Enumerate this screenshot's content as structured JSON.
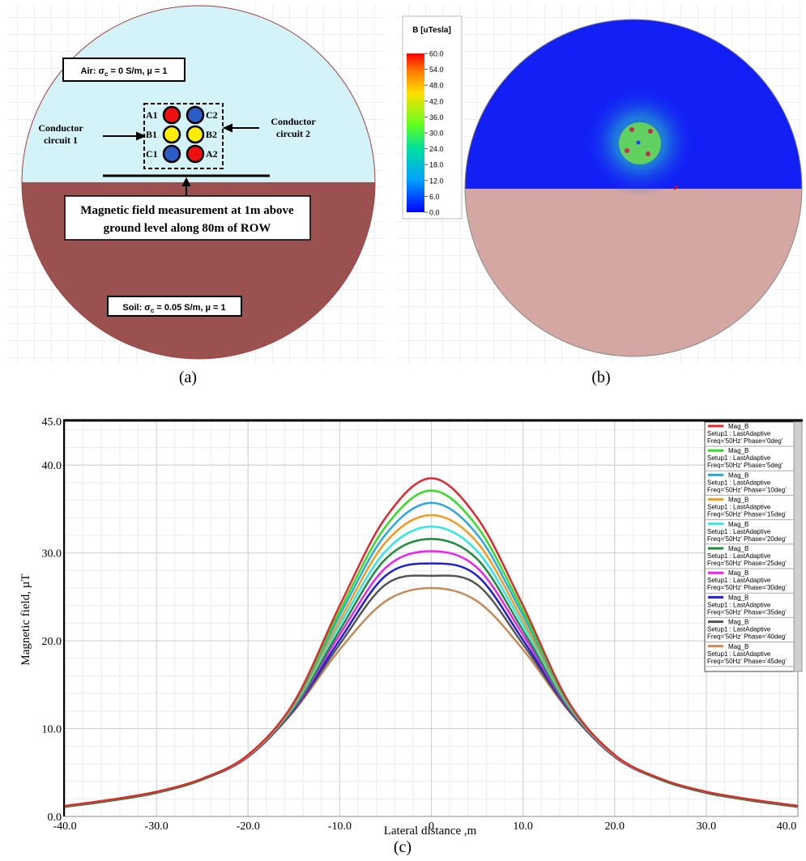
{
  "panel_a": {
    "caption": "(a)",
    "air_label": {
      "prefix": "Air: σ",
      "sub": "c",
      "suffix": " = 0 S/m, µ = 1"
    },
    "soil_label": {
      "prefix": "Soil: σ",
      "sub": "c",
      "suffix": " = 0.05 S/m, µ = 1"
    },
    "circuit_1": [
      "Conductor",
      "circuit 1"
    ],
    "circuit_2": [
      "Conductor",
      "circuit 2"
    ],
    "conductors": [
      "A1",
      "B1",
      "C1",
      "C2",
      "B2",
      "A2"
    ],
    "measurement": [
      "Magnetic field measurement at 1m above",
      "ground level along 80m of ROW"
    ]
  },
  "panel_b": {
    "caption": "(b)",
    "colorbar_title": "B [uTesla]",
    "clim": [
      0,
      60
    ],
    "ticks": [
      {
        "value": 60,
        "label": "60.0"
      },
      {
        "value": 54,
        "label": "54.0"
      },
      {
        "value": 48,
        "label": "48.0"
      },
      {
        "value": 42,
        "label": "42.0"
      },
      {
        "value": 36,
        "label": "36.0"
      },
      {
        "value": 30,
        "label": "30.0"
      },
      {
        "value": 24,
        "label": "24.0"
      },
      {
        "value": 18,
        "label": "18.0"
      },
      {
        "value": 12,
        "label": "12.0"
      },
      {
        "value": 6,
        "label": "6.0"
      },
      {
        "value": 0,
        "label": "0.0"
      }
    ]
  },
  "chart_data": {
    "type": "line",
    "caption": "(c)",
    "x_label": "Lateral distance ,m",
    "y_label": "Magnetic field, µT",
    "x": [
      -40,
      -35,
      -30,
      -25,
      -20,
      -15,
      -10,
      -5,
      0,
      5,
      10,
      15,
      20,
      25,
      30,
      35,
      40
    ],
    "xlim": [
      -40,
      40
    ],
    "ylim": [
      0,
      45
    ],
    "grid": true,
    "xticks": [
      {
        "value": -40,
        "label": "-40.0"
      },
      {
        "value": -30,
        "label": "-30.0"
      },
      {
        "value": -20,
        "label": "-20.0"
      },
      {
        "value": -10,
        "label": "-10.0"
      },
      {
        "value": 0,
        "label": "0"
      },
      {
        "value": 10,
        "label": "10.0"
      },
      {
        "value": 20,
        "label": "20.0"
      },
      {
        "value": 30,
        "label": "30.0"
      },
      {
        "value": 40,
        "label": "40.0"
      }
    ],
    "yticks": [
      {
        "value": 0,
        "label": "0.0"
      },
      {
        "value": 10,
        "label": "10.0"
      },
      {
        "value": 20,
        "label": "20.0"
      },
      {
        "value": 30,
        "label": "30.0"
      },
      {
        "value": 40,
        "label": "40.0"
      },
      {
        "value": 45,
        "label": "45.0"
      }
    ],
    "series": [
      {
        "name": "Mag_B",
        "setup": "Setup1 : LastAdaptive",
        "variation": "Freq='50Hz' Phase='0deg'",
        "color": "#e0282e",
        "values": [
          1.2,
          1.9,
          2.8,
          4.3,
          7,
          13,
          24,
          34,
          38.5,
          34,
          24,
          13,
          7,
          4.3,
          2.8,
          1.9,
          1.2
        ]
      },
      {
        "name": "Mag_B",
        "setup": "Setup1 : LastAdaptive",
        "variation": "Freq='50Hz' Phase='5deg'",
        "color": "#33dd22",
        "values": [
          1.2,
          1.9,
          2.8,
          4.3,
          7,
          12.9,
          23.4,
          33,
          37.1,
          33,
          23.4,
          12.9,
          7,
          4.3,
          2.8,
          1.9,
          1.2
        ]
      },
      {
        "name": "Mag_B",
        "setup": "Setup1 : LastAdaptive",
        "variation": "Freq='50Hz' Phase='10deg'",
        "color": "#29a8e0",
        "values": [
          1.2,
          1.9,
          2.8,
          4.3,
          7,
          12.8,
          22.9,
          32.1,
          35.7,
          32.1,
          22.9,
          12.8,
          7,
          4.3,
          2.8,
          1.9,
          1.2
        ]
      },
      {
        "name": "Mag_B",
        "setup": "Setup1 : LastAdaptive",
        "variation": "Freq='50Hz' Phase='15deg'",
        "color": "#f39a1e",
        "values": [
          1.2,
          1.9,
          2.8,
          4.3,
          6.9,
          12.7,
          22.3,
          31.2,
          34.3,
          31.2,
          22.3,
          12.7,
          6.9,
          4.3,
          2.8,
          1.9,
          1.2
        ]
      },
      {
        "name": "Mag_B",
        "setup": "Setup1 : LastAdaptive",
        "variation": "Freq='50Hz' Phase='20deg'",
        "color": "#33e6e6",
        "values": [
          1.2,
          1.9,
          2.8,
          4.3,
          6.9,
          12.6,
          21.8,
          30.2,
          33,
          30.2,
          21.8,
          12.6,
          6.9,
          4.3,
          2.8,
          1.9,
          1.2
        ]
      },
      {
        "name": "Mag_B",
        "setup": "Setup1 : LastAdaptive",
        "variation": "Freq='50Hz' Phase='25deg'",
        "color": "#1a8c3a",
        "values": [
          1.1,
          1.8,
          2.7,
          4.2,
          6.9,
          12.4,
          21.2,
          29.3,
          31.6,
          29.3,
          21.2,
          12.4,
          6.9,
          4.2,
          2.7,
          1.8,
          1.1
        ]
      },
      {
        "name": "Mag_B",
        "setup": "Setup1 : LastAdaptive",
        "variation": "Freq='50Hz' Phase='30deg'",
        "color": "#ee22ee",
        "values": [
          1.1,
          1.8,
          2.7,
          4.2,
          6.9,
          12.3,
          20.7,
          28.3,
          30.2,
          28.3,
          20.7,
          12.3,
          6.9,
          4.2,
          2.7,
          1.8,
          1.1
        ]
      },
      {
        "name": "Mag_B",
        "setup": "Setup1 : LastAdaptive",
        "variation": "Freq='50Hz' Phase='35deg'",
        "color": "#1f1fd6",
        "values": [
          1.1,
          1.8,
          2.7,
          4.2,
          6.8,
          12.2,
          20.1,
          27.4,
          28.8,
          27.4,
          20.1,
          12.2,
          6.8,
          4.2,
          2.7,
          1.8,
          1.1
        ]
      },
      {
        "name": "Mag_B",
        "setup": "Setup1 : LastAdaptive",
        "variation": "Freq='50Hz' Phase='40deg'",
        "color": "#555555",
        "values": [
          1.1,
          1.8,
          2.7,
          4.2,
          6.8,
          12.1,
          19.6,
          26.4,
          27.4,
          26.4,
          19.6,
          12.1,
          6.8,
          4.2,
          2.7,
          1.8,
          1.1
        ]
      },
      {
        "name": "Mag_B",
        "setup": "Setup1 : LastAdaptive",
        "variation": "Freq='50Hz' Phase='45deg'",
        "color": "#c48a5a",
        "values": [
          1.1,
          1.8,
          2.7,
          4.2,
          6.8,
          12,
          19,
          24.5,
          26,
          24.5,
          19,
          12,
          6.8,
          4.2,
          2.7,
          1.8,
          1.1
        ]
      }
    ]
  }
}
